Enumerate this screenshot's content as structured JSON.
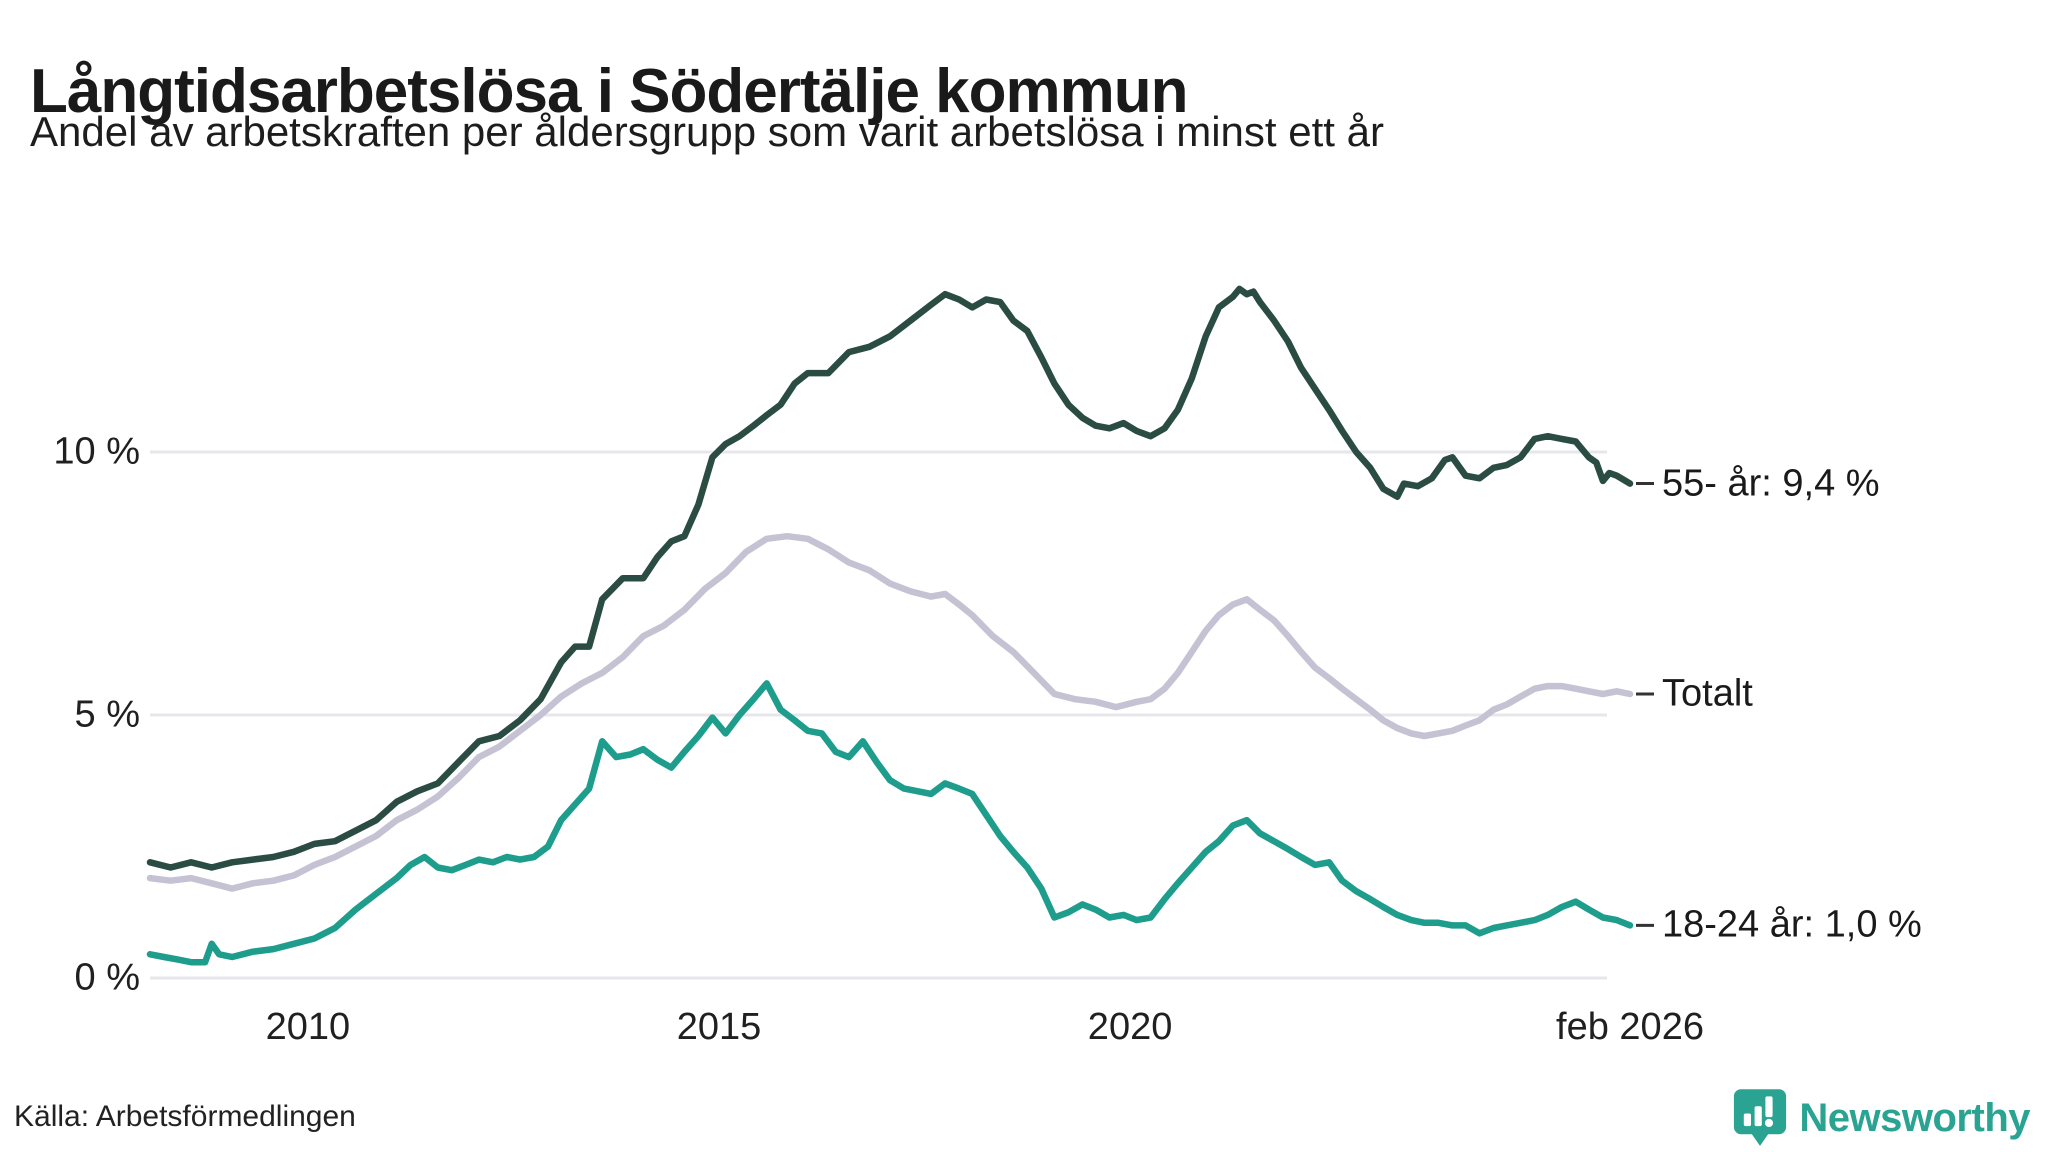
{
  "title": "Långtidsarbetslösa i Södertälje kommun",
  "subtitle": "Andel av arbetskraften per åldersgrupp som varit arbetslösa i minst ett år",
  "source": "Källa: Arbetsförmedlingen",
  "logo": {
    "text": "Newsworthy",
    "color": "#2aa392",
    "icon": "newsworthy-pin-barchart-icon"
  },
  "chart_data": {
    "type": "line",
    "title": "Långtidsarbetslösa i Södertälje kommun",
    "subtitle": "Andel av arbetskraften per åldersgrupp som varit arbetslösa i minst ett år",
    "x_range": [
      2008.08,
      2026.08
    ],
    "ylim": [
      0,
      13.8
    ],
    "grid_color": "#e7e6ea",
    "tick_dash_color": "#333333",
    "y_axis": {
      "ticks": [
        {
          "value": 0,
          "label": "0 %"
        },
        {
          "value": 5,
          "label": "5 %"
        },
        {
          "value": 10,
          "label": "10 %"
        }
      ]
    },
    "x_ticks": [
      {
        "value": 2010,
        "label": "2010"
      },
      {
        "value": 2015,
        "label": "2015"
      },
      {
        "value": 2020,
        "label": "2020"
      },
      {
        "value": 2026.08,
        "label": "feb 2026"
      }
    ],
    "series": [
      {
        "name": "55- år",
        "color": "#2b4c42",
        "end_label": "55- år: 9,4 %",
        "end_value": 9.4,
        "points": [
          [
            2008.08,
            2.2
          ],
          [
            2008.33,
            2.1
          ],
          [
            2008.58,
            2.2
          ],
          [
            2008.83,
            2.1
          ],
          [
            2009.08,
            2.2
          ],
          [
            2009.33,
            2.25
          ],
          [
            2009.58,
            2.3
          ],
          [
            2009.83,
            2.4
          ],
          [
            2010.08,
            2.55
          ],
          [
            2010.33,
            2.6
          ],
          [
            2010.58,
            2.8
          ],
          [
            2010.83,
            3.0
          ],
          [
            2011.08,
            3.35
          ],
          [
            2011.33,
            3.55
          ],
          [
            2011.58,
            3.7
          ],
          [
            2011.83,
            4.1
          ],
          [
            2012.08,
            4.5
          ],
          [
            2012.33,
            4.6
          ],
          [
            2012.58,
            4.9
          ],
          [
            2012.83,
            5.3
          ],
          [
            2013.08,
            6.0
          ],
          [
            2013.25,
            6.3
          ],
          [
            2013.42,
            6.3
          ],
          [
            2013.58,
            7.2
          ],
          [
            2013.83,
            7.6
          ],
          [
            2014.08,
            7.6
          ],
          [
            2014.25,
            8.0
          ],
          [
            2014.42,
            8.3
          ],
          [
            2014.58,
            8.4
          ],
          [
            2014.75,
            9.0
          ],
          [
            2014.92,
            9.9
          ],
          [
            2015.08,
            10.15
          ],
          [
            2015.25,
            10.3
          ],
          [
            2015.42,
            10.5
          ],
          [
            2015.58,
            10.7
          ],
          [
            2015.75,
            10.9
          ],
          [
            2015.92,
            11.3
          ],
          [
            2016.08,
            11.5
          ],
          [
            2016.33,
            11.5
          ],
          [
            2016.58,
            11.9
          ],
          [
            2016.83,
            12.0
          ],
          [
            2017.08,
            12.2
          ],
          [
            2017.33,
            12.5
          ],
          [
            2017.58,
            12.8
          ],
          [
            2017.75,
            13.0
          ],
          [
            2017.92,
            12.9
          ],
          [
            2018.08,
            12.75
          ],
          [
            2018.25,
            12.9
          ],
          [
            2018.42,
            12.85
          ],
          [
            2018.58,
            12.5
          ],
          [
            2018.75,
            12.3
          ],
          [
            2018.92,
            11.8
          ],
          [
            2019.08,
            11.3
          ],
          [
            2019.25,
            10.9
          ],
          [
            2019.42,
            10.65
          ],
          [
            2019.58,
            10.5
          ],
          [
            2019.75,
            10.45
          ],
          [
            2019.92,
            10.55
          ],
          [
            2020.08,
            10.4
          ],
          [
            2020.25,
            10.3
          ],
          [
            2020.42,
            10.45
          ],
          [
            2020.58,
            10.8
          ],
          [
            2020.75,
            11.4
          ],
          [
            2020.92,
            12.2
          ],
          [
            2021.08,
            12.75
          ],
          [
            2021.25,
            12.95
          ],
          [
            2021.33,
            13.1
          ],
          [
            2021.42,
            13.0
          ],
          [
            2021.5,
            13.05
          ],
          [
            2021.58,
            12.85
          ],
          [
            2021.75,
            12.5
          ],
          [
            2021.92,
            12.1
          ],
          [
            2022.08,
            11.6
          ],
          [
            2022.25,
            11.2
          ],
          [
            2022.42,
            10.8
          ],
          [
            2022.58,
            10.4
          ],
          [
            2022.75,
            10.0
          ],
          [
            2022.92,
            9.7
          ],
          [
            2023.08,
            9.3
          ],
          [
            2023.25,
            9.15
          ],
          [
            2023.33,
            9.4
          ],
          [
            2023.5,
            9.35
          ],
          [
            2023.67,
            9.5
          ],
          [
            2023.83,
            9.85
          ],
          [
            2023.92,
            9.9
          ],
          [
            2024.08,
            9.55
          ],
          [
            2024.25,
            9.5
          ],
          [
            2024.42,
            9.7
          ],
          [
            2024.58,
            9.75
          ],
          [
            2024.75,
            9.9
          ],
          [
            2024.92,
            10.25
          ],
          [
            2025.08,
            10.3
          ],
          [
            2025.25,
            10.25
          ],
          [
            2025.42,
            10.2
          ],
          [
            2025.58,
            9.9
          ],
          [
            2025.67,
            9.8
          ],
          [
            2025.75,
            9.45
          ],
          [
            2025.83,
            9.6
          ],
          [
            2025.92,
            9.55
          ],
          [
            2026.08,
            9.4
          ]
        ]
      },
      {
        "name": "Totalt",
        "color": "#c5c3d3",
        "end_label": "Totalt",
        "end_value": 5.4,
        "points": [
          [
            2008.08,
            1.9
          ],
          [
            2008.33,
            1.85
          ],
          [
            2008.58,
            1.9
          ],
          [
            2008.83,
            1.8
          ],
          [
            2009.08,
            1.7
          ],
          [
            2009.33,
            1.8
          ],
          [
            2009.58,
            1.85
          ],
          [
            2009.83,
            1.95
          ],
          [
            2010.08,
            2.15
          ],
          [
            2010.33,
            2.3
          ],
          [
            2010.58,
            2.5
          ],
          [
            2010.83,
            2.7
          ],
          [
            2011.08,
            3.0
          ],
          [
            2011.33,
            3.2
          ],
          [
            2011.58,
            3.45
          ],
          [
            2011.83,
            3.8
          ],
          [
            2012.08,
            4.2
          ],
          [
            2012.33,
            4.4
          ],
          [
            2012.58,
            4.7
          ],
          [
            2012.83,
            5.0
          ],
          [
            2013.08,
            5.35
          ],
          [
            2013.33,
            5.6
          ],
          [
            2013.58,
            5.8
          ],
          [
            2013.83,
            6.1
          ],
          [
            2014.08,
            6.5
          ],
          [
            2014.33,
            6.7
          ],
          [
            2014.58,
            7.0
          ],
          [
            2014.83,
            7.4
          ],
          [
            2015.08,
            7.7
          ],
          [
            2015.33,
            8.1
          ],
          [
            2015.58,
            8.35
          ],
          [
            2015.83,
            8.4
          ],
          [
            2016.08,
            8.35
          ],
          [
            2016.33,
            8.15
          ],
          [
            2016.58,
            7.9
          ],
          [
            2016.83,
            7.75
          ],
          [
            2017.08,
            7.5
          ],
          [
            2017.33,
            7.35
          ],
          [
            2017.58,
            7.25
          ],
          [
            2017.75,
            7.3
          ],
          [
            2017.92,
            7.1
          ],
          [
            2018.08,
            6.9
          ],
          [
            2018.33,
            6.5
          ],
          [
            2018.58,
            6.2
          ],
          [
            2018.83,
            5.8
          ],
          [
            2019.08,
            5.4
          ],
          [
            2019.33,
            5.3
          ],
          [
            2019.58,
            5.25
          ],
          [
            2019.83,
            5.15
          ],
          [
            2020.08,
            5.25
          ],
          [
            2020.25,
            5.3
          ],
          [
            2020.42,
            5.5
          ],
          [
            2020.58,
            5.8
          ],
          [
            2020.75,
            6.2
          ],
          [
            2020.92,
            6.6
          ],
          [
            2021.08,
            6.9
          ],
          [
            2021.25,
            7.1
          ],
          [
            2021.42,
            7.2
          ],
          [
            2021.58,
            7.0
          ],
          [
            2021.75,
            6.8
          ],
          [
            2021.92,
            6.5
          ],
          [
            2022.08,
            6.2
          ],
          [
            2022.25,
            5.9
          ],
          [
            2022.42,
            5.7
          ],
          [
            2022.58,
            5.5
          ],
          [
            2022.75,
            5.3
          ],
          [
            2022.92,
            5.1
          ],
          [
            2023.08,
            4.9
          ],
          [
            2023.25,
            4.75
          ],
          [
            2023.42,
            4.65
          ],
          [
            2023.58,
            4.6
          ],
          [
            2023.75,
            4.65
          ],
          [
            2023.92,
            4.7
          ],
          [
            2024.08,
            4.8
          ],
          [
            2024.25,
            4.9
          ],
          [
            2024.42,
            5.1
          ],
          [
            2024.58,
            5.2
          ],
          [
            2024.75,
            5.35
          ],
          [
            2024.92,
            5.5
          ],
          [
            2025.08,
            5.55
          ],
          [
            2025.25,
            5.55
          ],
          [
            2025.42,
            5.5
          ],
          [
            2025.58,
            5.45
          ],
          [
            2025.75,
            5.4
          ],
          [
            2025.92,
            5.45
          ],
          [
            2026.08,
            5.4
          ]
        ]
      },
      {
        "name": "18-24 år",
        "color": "#1e9d8c",
        "end_label": "18-24 år: 1,0 %",
        "end_value": 1.0,
        "points": [
          [
            2008.08,
            0.45
          ],
          [
            2008.25,
            0.4
          ],
          [
            2008.42,
            0.35
          ],
          [
            2008.58,
            0.3
          ],
          [
            2008.75,
            0.3
          ],
          [
            2008.83,
            0.65
          ],
          [
            2008.92,
            0.45
          ],
          [
            2009.08,
            0.4
          ],
          [
            2009.33,
            0.5
          ],
          [
            2009.58,
            0.55
          ],
          [
            2009.83,
            0.65
          ],
          [
            2010.08,
            0.75
          ],
          [
            2010.33,
            0.95
          ],
          [
            2010.58,
            1.3
          ],
          [
            2010.83,
            1.6
          ],
          [
            2011.08,
            1.9
          ],
          [
            2011.25,
            2.15
          ],
          [
            2011.42,
            2.3
          ],
          [
            2011.58,
            2.1
          ],
          [
            2011.75,
            2.05
          ],
          [
            2011.92,
            2.15
          ],
          [
            2012.08,
            2.25
          ],
          [
            2012.25,
            2.2
          ],
          [
            2012.42,
            2.3
          ],
          [
            2012.58,
            2.25
          ],
          [
            2012.75,
            2.3
          ],
          [
            2012.92,
            2.5
          ],
          [
            2013.08,
            3.0
          ],
          [
            2013.25,
            3.3
          ],
          [
            2013.42,
            3.6
          ],
          [
            2013.58,
            4.5
          ],
          [
            2013.75,
            4.2
          ],
          [
            2013.92,
            4.25
          ],
          [
            2014.08,
            4.35
          ],
          [
            2014.25,
            4.15
          ],
          [
            2014.42,
            4.0
          ],
          [
            2014.58,
            4.3
          ],
          [
            2014.75,
            4.6
          ],
          [
            2014.92,
            4.95
          ],
          [
            2015.08,
            4.65
          ],
          [
            2015.25,
            5.0
          ],
          [
            2015.42,
            5.3
          ],
          [
            2015.58,
            5.6
          ],
          [
            2015.75,
            5.1
          ],
          [
            2015.92,
            4.9
          ],
          [
            2016.08,
            4.7
          ],
          [
            2016.25,
            4.65
          ],
          [
            2016.42,
            4.3
          ],
          [
            2016.58,
            4.2
          ],
          [
            2016.75,
            4.5
          ],
          [
            2016.92,
            4.1
          ],
          [
            2017.08,
            3.76
          ],
          [
            2017.25,
            3.6
          ],
          [
            2017.42,
            3.55
          ],
          [
            2017.58,
            3.5
          ],
          [
            2017.75,
            3.7
          ],
          [
            2017.92,
            3.6
          ],
          [
            2018.08,
            3.5
          ],
          [
            2018.25,
            3.1
          ],
          [
            2018.42,
            2.7
          ],
          [
            2018.58,
            2.4
          ],
          [
            2018.75,
            2.1
          ],
          [
            2018.92,
            1.7
          ],
          [
            2019.08,
            1.15
          ],
          [
            2019.25,
            1.25
          ],
          [
            2019.42,
            1.4
          ],
          [
            2019.58,
            1.3
          ],
          [
            2019.75,
            1.15
          ],
          [
            2019.92,
            1.2
          ],
          [
            2020.08,
            1.1
          ],
          [
            2020.25,
            1.15
          ],
          [
            2020.42,
            1.5
          ],
          [
            2020.58,
            1.8
          ],
          [
            2020.75,
            2.1
          ],
          [
            2020.92,
            2.4
          ],
          [
            2021.08,
            2.6
          ],
          [
            2021.25,
            2.9
          ],
          [
            2021.42,
            3.0
          ],
          [
            2021.58,
            2.75
          ],
          [
            2021.75,
            2.6
          ],
          [
            2021.92,
            2.45
          ],
          [
            2022.08,
            2.3
          ],
          [
            2022.25,
            2.15
          ],
          [
            2022.42,
            2.2
          ],
          [
            2022.58,
            1.85
          ],
          [
            2022.75,
            1.65
          ],
          [
            2022.92,
            1.5
          ],
          [
            2023.08,
            1.35
          ],
          [
            2023.25,
            1.2
          ],
          [
            2023.42,
            1.1
          ],
          [
            2023.58,
            1.05
          ],
          [
            2023.75,
            1.05
          ],
          [
            2023.92,
            1.0
          ],
          [
            2024.08,
            1.0
          ],
          [
            2024.25,
            0.85
          ],
          [
            2024.42,
            0.95
          ],
          [
            2024.58,
            1.0
          ],
          [
            2024.75,
            1.05
          ],
          [
            2024.92,
            1.1
          ],
          [
            2025.08,
            1.2
          ],
          [
            2025.25,
            1.35
          ],
          [
            2025.42,
            1.45
          ],
          [
            2025.58,
            1.3
          ],
          [
            2025.75,
            1.15
          ],
          [
            2025.92,
            1.1
          ],
          [
            2026.08,
            1.0
          ]
        ]
      }
    ]
  }
}
